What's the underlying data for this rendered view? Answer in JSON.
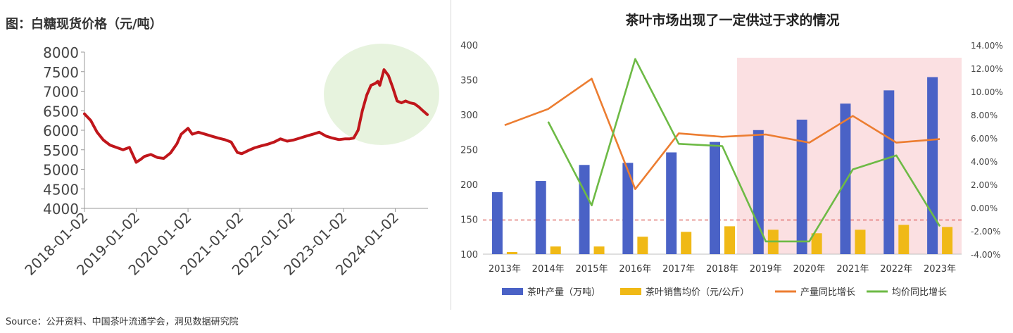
{
  "left": {
    "title": "图：白糖现货价格（元/吨）",
    "chart_data": {
      "type": "line",
      "title": "图：白糖现货价格（元/吨）",
      "y_ticks": [
        4000,
        4500,
        5000,
        5500,
        6000,
        6500,
        7000,
        7500,
        8000
      ],
      "ylim": [
        4000,
        8000
      ],
      "x_ticks": [
        "2018-01-02",
        "2019-01-02",
        "2020-01-02",
        "2021-01-02",
        "2022-01-02",
        "2023-01-02",
        "2024-01-02"
      ],
      "series": [
        {
          "x": [
            "2018-01-02",
            "2018-02-15",
            "2018-04-01",
            "2018-05-15",
            "2018-07-01",
            "2018-08-15",
            "2018-10-01",
            "2018-11-15",
            "2019-01-02",
            "2019-02-01",
            "2019-03-01",
            "2019-04-15",
            "2019-06-01",
            "2019-07-15",
            "2019-09-01",
            "2019-10-15",
            "2019-11-15",
            "2020-01-02",
            "2020-02-01",
            "2020-03-15",
            "2020-05-01",
            "2020-06-15",
            "2020-08-01",
            "2020-09-15",
            "2020-11-01",
            "2020-12-15",
            "2021-01-15",
            "2021-03-01",
            "2021-04-15",
            "2021-06-01",
            "2021-07-15",
            "2021-09-01",
            "2021-10-15",
            "2021-12-01",
            "2022-01-15",
            "2022-03-01",
            "2022-04-15",
            "2022-06-01",
            "2022-07-15",
            "2022-09-01",
            "2022-10-15",
            "2022-12-01",
            "2023-01-15",
            "2023-02-15",
            "2023-03-15",
            "2023-04-15",
            "2023-05-15",
            "2023-06-15",
            "2023-07-15",
            "2023-08-15",
            "2023-09-01",
            "2023-09-15",
            "2023-10-15",
            "2023-11-15",
            "2023-12-15",
            "2024-01-15",
            "2024-02-15",
            "2024-03-15",
            "2024-04-15",
            "2024-05-15",
            "2024-06-15",
            "2024-07-15",
            "2024-08-15"
          ],
          "y": [
            6420,
            6250,
            5950,
            5750,
            5620,
            5560,
            5500,
            5560,
            5180,
            5250,
            5330,
            5380,
            5300,
            5280,
            5420,
            5650,
            5900,
            6050,
            5900,
            5950,
            5900,
            5850,
            5800,
            5760,
            5700,
            5430,
            5400,
            5480,
            5550,
            5600,
            5640,
            5700,
            5780,
            5720,
            5750,
            5800,
            5850,
            5900,
            5950,
            5850,
            5800,
            5760,
            5780,
            5780,
            5800,
            6000,
            6500,
            6900,
            7150,
            7200,
            7250,
            7150,
            7550,
            7400,
            7100,
            6750,
            6700,
            6750,
            6700,
            6680,
            6600,
            6500,
            6400
          ]
        }
      ]
    }
  },
  "right": {
    "title": "茶叶市场出现了一定供过于求的情况",
    "chart_data": {
      "type": "bar",
      "title": "茶叶市场出现了一定供过于求的情况",
      "categories": [
        "2013年",
        "2014年",
        "2015年",
        "2016年",
        "2017年",
        "2018年",
        "2019年",
        "2020年",
        "2021年",
        "2022年",
        "2023年"
      ],
      "y_left_ticks": [
        100,
        150,
        200,
        250,
        300,
        350,
        400
      ],
      "ylim_left": [
        100,
        400
      ],
      "y_right_ticks": [
        "-4.00%",
        "-2.00%",
        "0.00%",
        "2.00%",
        "4.00%",
        "6.00%",
        "8.00%",
        "10.00%",
        "12.00%",
        "14.00%"
      ],
      "ylim_right": [
        -4,
        14
      ],
      "reference_line": 149,
      "highlight_start": "2019年",
      "series": [
        {
          "name": "茶叶产量（万吨）",
          "type": "bar",
          "axis": "left",
          "color": "#4a62c6",
          "values": [
            189,
            205,
            228,
            231,
            246,
            261,
            278,
            293,
            316,
            335,
            354
          ]
        },
        {
          "name": "茶叶销售均价（元/公斤）",
          "type": "bar",
          "axis": "left",
          "color": "#f0b916",
          "values": [
            103,
            111,
            111,
            125,
            132,
            140,
            135,
            130,
            135,
            142,
            139
          ]
        },
        {
          "name": "产量同比增长",
          "type": "line",
          "axis": "right",
          "color": "#ec7d31",
          "values": [
            7.1,
            8.5,
            11.1,
            1.6,
            6.4,
            6.1,
            6.3,
            5.6,
            7.9,
            5.6,
            5.9
          ]
        },
        {
          "name": "均价同比增长",
          "type": "line",
          "axis": "right",
          "color": "#6dba45",
          "values": [
            null,
            7.4,
            0.2,
            12.8,
            5.5,
            5.3,
            -2.9,
            -2.9,
            3.3,
            4.5,
            -1.6
          ]
        }
      ]
    }
  },
  "source": "Source：公开资料、中国茶叶流通学会，洞见数据研究院"
}
